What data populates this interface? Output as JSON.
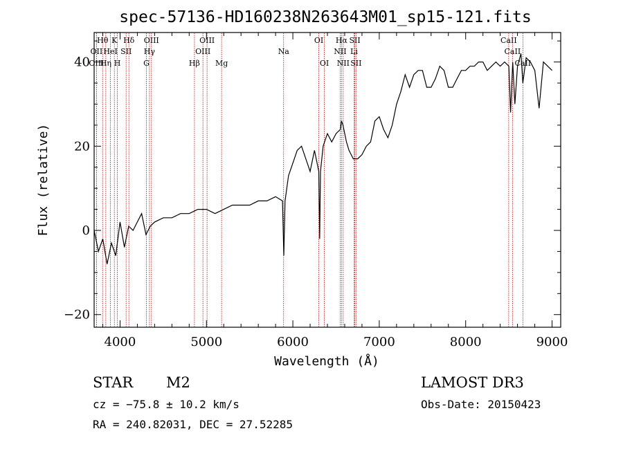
{
  "chart_data": {
    "type": "line",
    "title": "spec-57136-HD160238N263643M01_sp15-121.fits",
    "xlabel": "Wavelength (Å)",
    "ylabel": "Flux (relative)",
    "xlim": [
      3700,
      9100
    ],
    "ylim": [
      -23,
      47
    ],
    "xticks": [
      4000,
      5000,
      6000,
      7000,
      8000,
      9000
    ],
    "yticks": [
      -20,
      0,
      20,
      40
    ],
    "series": [
      {
        "name": "spectrum",
        "x": [
          3700,
          3750,
          3800,
          3850,
          3900,
          3950,
          4000,
          4050,
          4100,
          4150,
          4200,
          4250,
          4300,
          4350,
          4400,
          4500,
          4600,
          4700,
          4800,
          4900,
          5000,
          5100,
          5200,
          5300,
          5400,
          5500,
          5600,
          5700,
          5800,
          5880,
          5895,
          5910,
          5950,
          6000,
          6050,
          6100,
          6150,
          6200,
          6250,
          6300,
          6310,
          6320,
          6350,
          6400,
          6450,
          6500,
          6550,
          6563,
          6580,
          6620,
          6650,
          6700,
          6750,
          6800,
          6850,
          6900,
          6950,
          7000,
          7050,
          7100,
          7150,
          7200,
          7250,
          7300,
          7350,
          7400,
          7450,
          7500,
          7550,
          7600,
          7650,
          7700,
          7750,
          7800,
          7850,
          7900,
          7950,
          8000,
          8050,
          8100,
          8150,
          8200,
          8250,
          8300,
          8350,
          8400,
          8450,
          8500,
          8520,
          8545,
          8570,
          8600,
          8640,
          8662,
          8700,
          8750,
          8800,
          8850,
          8900,
          8950,
          9000
        ],
        "y": [
          0,
          -5,
          -2,
          -8,
          -3,
          -6,
          2,
          -4,
          1,
          0,
          2,
          4,
          -1,
          1,
          2,
          3,
          3,
          4,
          4,
          5,
          5,
          4,
          5,
          6,
          6,
          6,
          7,
          7,
          8,
          7,
          -6,
          7,
          13,
          16,
          19,
          20,
          17,
          14,
          19,
          14,
          -2,
          14,
          20,
          23,
          21,
          23,
          24,
          26,
          25,
          21,
          19,
          17,
          17,
          18,
          20,
          21,
          26,
          27,
          24,
          22,
          25,
          30,
          33,
          37,
          34,
          37,
          38,
          38,
          34,
          34,
          36,
          39,
          38,
          34,
          34,
          36,
          38,
          38,
          39,
          39,
          40,
          40,
          38,
          39,
          40,
          39,
          40,
          39,
          28,
          40,
          30,
          39,
          42,
          35,
          41,
          40,
          38,
          29,
          40,
          39,
          38
        ]
      }
    ],
    "spectral_lines": [
      {
        "label": "Hθ",
        "row": 1,
        "x": 3798
      },
      {
        "label": "K",
        "row": 1,
        "x": 3934
      },
      {
        "label": "Hδ",
        "row": 1,
        "x": 4102
      },
      {
        "label": "OIII",
        "row": 1,
        "x": 4363
      },
      {
        "label": "OIII",
        "row": 1,
        "x": 5007
      },
      {
        "label": "OI",
        "row": 1,
        "x": 6300
      },
      {
        "label": "Hα",
        "row": 1,
        "x": 6563
      },
      {
        "label": "SII",
        "row": 1,
        "x": 6717
      },
      {
        "label": "CaII",
        "row": 1,
        "x": 8498
      },
      {
        "label": "OII",
        "row": 2,
        "x": 3727
      },
      {
        "label": "HeI",
        "row": 2,
        "x": 3889
      },
      {
        "label": "SII",
        "row": 2,
        "x": 4070
      },
      {
        "label": "Hγ",
        "row": 2,
        "x": 4340
      },
      {
        "label": "OIII",
        "row": 2,
        "x": 4959
      },
      {
        "label": "Na",
        "row": 2,
        "x": 5893
      },
      {
        "label": "NII",
        "row": 2,
        "x": 6548
      },
      {
        "label": "Li",
        "row": 2,
        "x": 6708
      },
      {
        "label": "CaII",
        "row": 2,
        "x": 8542
      },
      {
        "label": "OIII",
        "row": 3,
        "x": 3727
      },
      {
        "label": "Hη",
        "row": 3,
        "x": 3835
      },
      {
        "label": "H",
        "row": 3,
        "x": 3969
      },
      {
        "label": "G",
        "row": 3,
        "x": 4305
      },
      {
        "label": "Hβ",
        "row": 3,
        "x": 4861
      },
      {
        "label": "Mg",
        "row": 3,
        "x": 5175
      },
      {
        "label": "OI",
        "row": 3,
        "x": 6364
      },
      {
        "label": "NII",
        "row": 3,
        "x": 6583
      },
      {
        "label": "SII",
        "row": 3,
        "x": 6731
      },
      {
        "label": "CaII",
        "row": 3,
        "x": 8662
      }
    ]
  },
  "footer": {
    "object_class": "STAR",
    "subclass": "M2",
    "survey": "LAMOST DR3",
    "cz": "cz = −75.8 ± 10.2 km/s",
    "obs_date": "Obs-Date: 20150423",
    "coords": "RA = 240.82031, DEC =  27.52285"
  },
  "colors": {
    "line_marker": "#c00000",
    "spectrum": "#000000"
  }
}
